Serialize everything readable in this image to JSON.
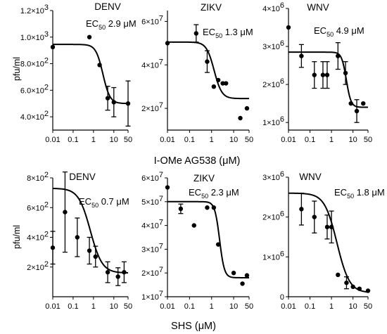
{
  "chart_data": [
    {
      "type": "scatter",
      "virus": "DENV",
      "ec50_value": "2.9 μM",
      "ylabel": "pfu/ml",
      "xscale": "log",
      "xlim": [
        0.01,
        50
      ],
      "ylim": [
        300,
        1200
      ],
      "xticks": [
        "0.01",
        "0.1",
        "1",
        "10",
        "50"
      ],
      "yticks": [
        {
          "mant": "4.0",
          "exp": "2"
        },
        {
          "mant": "6.0",
          "exp": "2"
        },
        {
          "mant": "8.0",
          "exp": "2"
        },
        {
          "mant": "1.0",
          "exp": "3"
        },
        {
          "mant": "1.2",
          "exp": "3"
        }
      ],
      "x": [
        0.01,
        0.63,
        2.0,
        5.0,
        10,
        50
      ],
      "y": [
        925,
        1000,
        790,
        540,
        510,
        500
      ],
      "error": [
        0,
        0,
        0,
        90,
        110,
        170
      ],
      "fit": {
        "top": 945,
        "bottom": 500,
        "ec50": 2.9,
        "hill": 2.5
      }
    },
    {
      "type": "scatter",
      "virus": "ZIKV",
      "ec50_value": "1.3 μM",
      "ylabel": "",
      "xscale": "log",
      "xlim": [
        0.01,
        50
      ],
      "ylim": [
        10000000,
        65000000
      ],
      "xticks": [
        "0.01",
        "0.1",
        "1",
        "10",
        "50"
      ],
      "yticks": [
        {
          "mant": "2",
          "exp": "7"
        },
        {
          "mant": "4",
          "exp": "7"
        },
        {
          "mant": "6",
          "exp": "7"
        }
      ],
      "x": [
        0.01,
        0.2,
        0.63,
        1.26,
        2.0,
        3.2,
        4.5,
        20,
        40
      ],
      "y": [
        50000000,
        54500000,
        41500000,
        30000000,
        33000000,
        31500000,
        31500000,
        15500000,
        20000000
      ],
      "error": [
        0,
        4000000,
        5000000,
        0,
        0,
        0,
        0,
        0,
        0
      ],
      "fit": {
        "top": 50500000,
        "bottom": 24500000,
        "ec50": 1.3,
        "hill": 2.5
      }
    },
    {
      "type": "scatter",
      "virus": "WNV",
      "ec50_value": "4.9 μM",
      "ylabel": "",
      "xscale": "log",
      "xlim": [
        0.01,
        50
      ],
      "ylim": [
        800000,
        4000000
      ],
      "xticks": [
        "0.01",
        "0.1",
        "1",
        "10",
        "50"
      ],
      "yticks": [
        {
          "mant": "1",
          "exp": "6"
        },
        {
          "mant": "2",
          "exp": "6"
        },
        {
          "mant": "3",
          "exp": "6"
        },
        {
          "mant": "4",
          "exp": "6"
        }
      ],
      "x": [
        0.01,
        0.04,
        0.16,
        0.4,
        0.63,
        2.0,
        4.5,
        8.0,
        15,
        30
      ],
      "y": [
        3500000,
        2750000,
        2250000,
        2250000,
        2250000,
        2750000,
        2300000,
        1500000,
        1300000,
        1500000
      ],
      "error": [
        0,
        300000,
        350000,
        350000,
        350000,
        350000,
        300000,
        0,
        300000,
        0
      ],
      "fit": {
        "top": 2850000,
        "bottom": 1400000,
        "ec50": 4.9,
        "hill": 4
      }
    },
    {
      "type": "scatter",
      "virus": "DENV",
      "ec50_value": "0.7 μM",
      "ylabel": "pfu/ml",
      "xscale": "log",
      "xlim": [
        0.01,
        50
      ],
      "ylim": [
        0,
        800
      ],
      "xticks": [
        "0.01",
        "0.1",
        "1",
        "10",
        "50"
      ],
      "yticks": [
        {
          "mant": "2",
          "exp": "2"
        },
        {
          "mant": "4",
          "exp": "2"
        },
        {
          "mant": "6",
          "exp": "2"
        },
        {
          "mant": "8",
          "exp": "2"
        }
      ],
      "x": [
        0.01,
        0.04,
        0.16,
        0.63,
        1.26,
        5.0,
        16,
        32
      ],
      "y": [
        330,
        570,
        400,
        310,
        270,
        165,
        135,
        165
      ],
      "error": [
        110,
        270,
        130,
        90,
        70,
        70,
        60,
        70
      ],
      "fit": {
        "top": 730,
        "bottom": 160,
        "ec50": 0.7,
        "hill": 1.5
      }
    },
    {
      "type": "scatter",
      "virus": "ZIKV",
      "ec50_value": "2.3 μM",
      "ylabel": "",
      "xscale": "log",
      "xlim": [
        0.01,
        50
      ],
      "ylim": [
        10000000,
        60000000
      ],
      "xticks": [
        "0.01",
        "0.1",
        "1",
        "10",
        "50"
      ],
      "yticks": [
        {
          "mant": "1",
          "exp": "7"
        },
        {
          "mant": "2",
          "exp": "7"
        },
        {
          "mant": "3",
          "exp": "7"
        },
        {
          "mant": "4",
          "exp": "7"
        },
        {
          "mant": "5",
          "exp": "7"
        },
        {
          "mant": "6",
          "exp": "7"
        }
      ],
      "x": [
        0.01,
        0.04,
        0.16,
        0.63,
        1.26,
        2.0,
        10,
        25,
        40
      ],
      "y": [
        56000000,
        47000000,
        40000000,
        47500000,
        47500000,
        32000000,
        20000000,
        15500000,
        19000000
      ],
      "error": [
        0,
        2000000,
        0,
        0,
        0,
        0,
        0,
        0,
        0
      ],
      "fit": {
        "top": 50000000,
        "bottom": 18000000,
        "ec50": 2.3,
        "hill": 4
      }
    },
    {
      "type": "scatter",
      "virus": "WNV",
      "ec50_value": "1.8 μM",
      "ylabel": "",
      "xscale": "log",
      "xlim": [
        0.01,
        50
      ],
      "ylim": [
        0,
        3000000
      ],
      "xticks": [
        "0.01",
        "0.1",
        "1",
        "10",
        "50"
      ],
      "yticks": [
        {
          "mant": "0",
          "exp": ""
        },
        {
          "mant": "1",
          "exp": "6"
        },
        {
          "mant": "2",
          "exp": "6"
        },
        {
          "mant": "3",
          "exp": "6"
        }
      ],
      "x": [
        0.04,
        0.16,
        0.63,
        1.0,
        2.0,
        5.0,
        10,
        20,
        50
      ],
      "y": [
        2200000,
        2000000,
        1750000,
        1750000,
        550000,
        350000,
        250000,
        200000,
        150000
      ],
      "error": [
        400000,
        400000,
        300000,
        400000,
        0,
        150000,
        0,
        0,
        0
      ],
      "fit": {
        "top": 2600000,
        "bottom": 100000,
        "ec50": 1.8,
        "hill": 1.5
      }
    }
  ],
  "labels": {
    "ec50_base": "EC",
    "ec50_sub": "50",
    "row1_xlabel": "I-OMe AG538 (μM)",
    "row2_xlabel": "SHS (μM)"
  },
  "colors": {
    "ink": "#000000",
    "background": "#ffffff"
  }
}
